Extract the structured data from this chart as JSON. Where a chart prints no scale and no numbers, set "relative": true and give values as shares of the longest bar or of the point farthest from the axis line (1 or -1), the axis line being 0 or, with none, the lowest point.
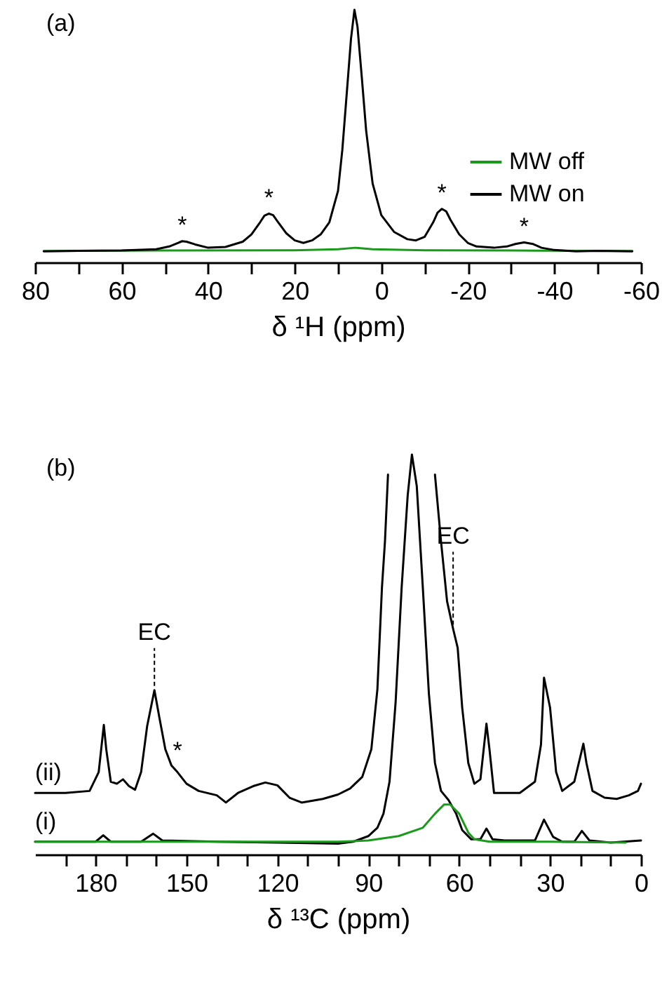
{
  "chart_data": [
    {
      "type": "line",
      "title": "(a)",
      "xlabel": "δ ¹H (ppm)",
      "relative": true,
      "legend": "bottom right",
      "line_style": "solid",
      "xlim": [
        80,
        -60
      ],
      "xticks": [
        80,
        {
          "value": 70,
          "label": null
        },
        60,
        {
          "value": 50,
          "label": null
        },
        40,
        {
          "value": 30,
          "label": null
        },
        20,
        {
          "value": 10,
          "label": null
        },
        0,
        {
          "value": -10,
          "label": null
        },
        -20,
        {
          "value": -30,
          "label": null
        },
        -40,
        {
          "value": -50,
          "label": null
        },
        -60
      ],
      "x": [
        78,
        70,
        60,
        52,
        49,
        47,
        46,
        45,
        43,
        40,
        36,
        32,
        30,
        28,
        27,
        26,
        25,
        24,
        22,
        20,
        18,
        16,
        14,
        12,
        10,
        9,
        8,
        7,
        6.2,
        5.5,
        4.5,
        3.5,
        2,
        0,
        -3,
        -6,
        -8,
        -10,
        -12,
        -13,
        -14,
        -15,
        -16,
        -18,
        -20,
        -22,
        -26,
        -29,
        -31,
        -33,
        -35,
        -37,
        -40,
        -45,
        -50,
        -58
      ],
      "series": [
        {
          "name": "MW off",
          "color": "#1a9a1a",
          "x": [
            78,
            50,
            20,
            10,
            6,
            2,
            -10,
            -30,
            -58
          ],
          "values": [
            0.045,
            0.047,
            0.048,
            0.052,
            0.058,
            0.052,
            0.048,
            0.047,
            0.045
          ]
        },
        {
          "name": "MW on",
          "color": "#000000",
          "values": [
            0.044,
            0.046,
            0.047,
            0.052,
            0.063,
            0.077,
            0.084,
            0.082,
            0.071,
            0.058,
            0.061,
            0.082,
            0.111,
            0.159,
            0.185,
            0.193,
            0.187,
            0.163,
            0.116,
            0.087,
            0.077,
            0.087,
            0.111,
            0.159,
            0.283,
            0.446,
            0.665,
            0.885,
            1,
            0.933,
            0.732,
            0.522,
            0.312,
            0.187,
            0.12,
            0.092,
            0.087,
            0.101,
            0.159,
            0.197,
            0.212,
            0.202,
            0.168,
            0.111,
            0.077,
            0.063,
            0.058,
            0.063,
            0.073,
            0.079,
            0.073,
            0.058,
            0.049,
            0.044,
            0.046,
            0.044
          ]
        }
      ],
      "annotations": [
        {
          "text": "*",
          "x": 46,
          "y": 0.084
        },
        {
          "text": "*",
          "x": 26,
          "y": 0.193
        },
        {
          "text": "*",
          "x": -14,
          "y": 0.212
        },
        {
          "text": "*",
          "x": -33,
          "y": 0.079
        }
      ]
    },
    {
      "type": "line",
      "title": "(b)",
      "xlabel": "δ ¹³C (ppm)",
      "relative": true,
      "line_style": "solid",
      "xlim": [
        200,
        0
      ],
      "xticks": [
        {
          "value": 190,
          "label": null
        },
        180,
        {
          "value": 170,
          "label": null
        },
        {
          "value": 160,
          "label": null
        },
        150,
        {
          "value": 140,
          "label": null
        },
        {
          "value": 130,
          "label": null
        },
        120,
        {
          "value": 110,
          "label": null
        },
        {
          "value": 100,
          "label": null
        },
        90,
        {
          "value": 80,
          "label": null
        },
        {
          "value": 70,
          "label": null
        },
        60,
        {
          "value": 50,
          "label": null
        },
        {
          "value": 40,
          "label": null
        },
        30,
        {
          "value": 20,
          "label": null
        },
        {
          "value": 10,
          "label": null
        },
        0
      ],
      "series": [
        {
          "name": "(ii)",
          "color": "#000000",
          "x": [
            200,
            190,
            182,
            179,
            177.3,
            176.5,
            175,
            173,
            171,
            169,
            167,
            165,
            163,
            160.6,
            159,
            157,
            155,
            153,
            150,
            146,
            140,
            137,
            133,
            128,
            124,
            120,
            116,
            112,
            105,
            100,
            96,
            92,
            89,
            87,
            85.5,
            84.5,
            83.5,
            75,
            68,
            66,
            64,
            62,
            60.5,
            59,
            57,
            55,
            53,
            51,
            50,
            48.5,
            46,
            40,
            35,
            33,
            32,
            30,
            28,
            26,
            22,
            19,
            18,
            16,
            12,
            8,
            4,
            1,
            0
          ],
          "values": [
            0.154,
            0.154,
            0.159,
            0.206,
            0.324,
            0.263,
            0.182,
            0.177,
            0.188,
            0.171,
            0.162,
            0.206,
            0.321,
            0.411,
            0.344,
            0.263,
            0.223,
            0.206,
            0.177,
            0.159,
            0.148,
            0.13,
            0.154,
            0.171,
            0.18,
            0.173,
            0.142,
            0.13,
            0.139,
            0.15,
            0.165,
            0.194,
            0.263,
            0.413,
            0.667,
            0.783,
            0.95,
            null,
            0.95,
            0.783,
            0.633,
            0.564,
            0.517,
            0.367,
            0.229,
            0.177,
            0.188,
            0.327,
            0.263,
            0.154,
            0.154,
            0.154,
            0.182,
            0.275,
            0.442,
            0.367,
            0.206,
            0.159,
            0.182,
            0.277,
            0.229,
            0.159,
            0.142,
            0.139,
            0.148,
            0.159,
            0.177
          ]
        },
        {
          "name": "(i)",
          "color": "#000000",
          "x": [
            200,
            180,
            177.5,
            175,
            165,
            161,
            158,
            140,
            120,
            100,
            95,
            90,
            87,
            85,
            83,
            81,
            79,
            77,
            75.6,
            74,
            72,
            70,
            68,
            66,
            63.5,
            61,
            59,
            56,
            53,
            51,
            49,
            45,
            35,
            32,
            29,
            26,
            22,
            19.5,
            17,
            10,
            0
          ],
          "values": [
            0.032,
            0.032,
            0.048,
            0.032,
            0.032,
            0.052,
            0.035,
            0.032,
            0.03,
            0.027,
            0.032,
            0.046,
            0.067,
            0.102,
            0.182,
            0.379,
            0.667,
            0.898,
            1,
            0.921,
            0.667,
            0.402,
            0.229,
            0.159,
            0.136,
            0.102,
            0.061,
            0.038,
            0.038,
            0.065,
            0.038,
            0.035,
            0.035,
            0.087,
            0.044,
            0.032,
            0.032,
            0.059,
            0.035,
            0.03,
            0.035
          ]
        },
        {
          "color": "#1a9a1a",
          "x": [
            200,
            100,
            90,
            80,
            72,
            68,
            65,
            63,
            60,
            57,
            55,
            50,
            30,
            5
          ],
          "values": [
            0.032,
            0.032,
            0.035,
            0.046,
            0.067,
            0.102,
            0.125,
            0.125,
            0.102,
            0.055,
            0.038,
            0.032,
            0.032,
            0.03
          ]
        }
      ],
      "annotations": [
        {
          "text": "EC",
          "x": 160.6,
          "y": 0.411
        },
        {
          "text": "*",
          "x": 153,
          "y": 0.22
        },
        {
          "text": "EC",
          "x": 62,
          "y": 0.564
        }
      ]
    }
  ]
}
